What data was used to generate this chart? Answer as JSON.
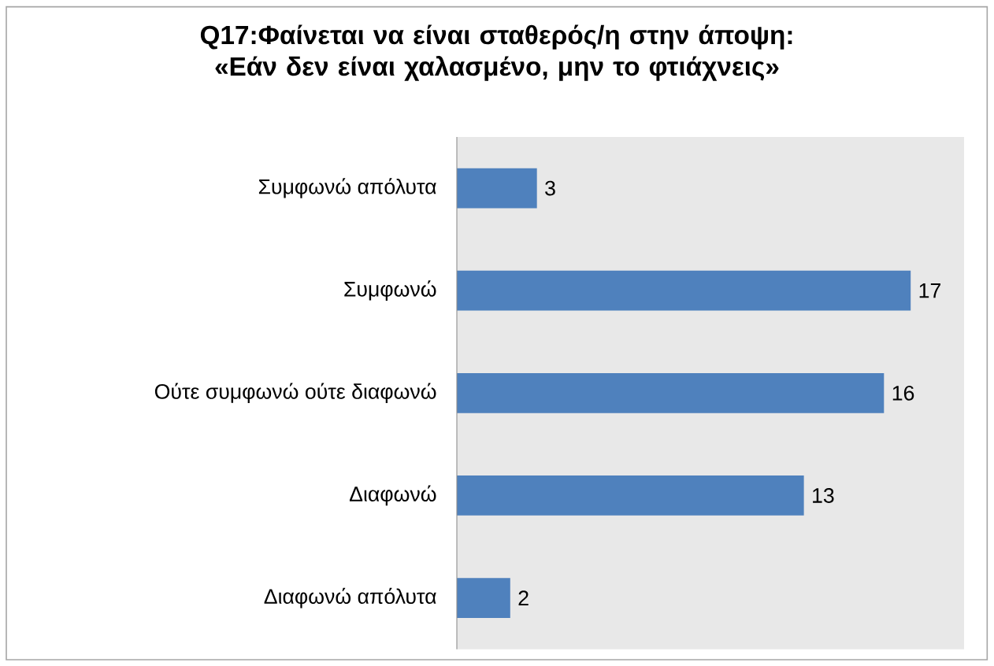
{
  "chart_data": {
    "type": "bar",
    "orientation": "horizontal",
    "title": "Q17:Φαίνεται να είναι σταθερός/η στην άποψη: «Εάν δεν είναι χαλασμένο, μην το φτιάχνεις»",
    "categories": [
      "Συμφωνώ απόλυτα",
      "Συμφωνώ",
      "Ούτε συμφωνώ ούτε διαφωνώ",
      "Διαφωνώ",
      "Διαφωνώ απόλυτα"
    ],
    "values": [
      3,
      17,
      16,
      13,
      2
    ],
    "color": "#4f81bd",
    "xlim": [
      0,
      19
    ],
    "data_labels": true,
    "tick_labels": "y"
  }
}
